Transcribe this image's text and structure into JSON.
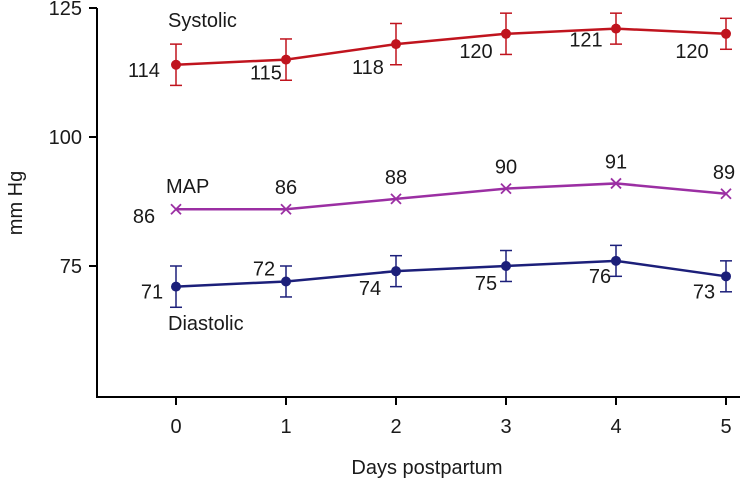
{
  "chart_data": {
    "type": "line",
    "title": "",
    "xlabel": "Days postpartum",
    "ylabel": "mm Hg",
    "x": [
      0,
      1,
      2,
      3,
      4,
      5
    ],
    "xticks": [
      "0",
      "1",
      "2",
      "3",
      "4",
      "5"
    ],
    "yticks": [
      "75",
      "100",
      "125"
    ],
    "xlim": [
      -0.7,
      5.05
    ],
    "ylim": [
      50,
      125
    ],
    "grid": false,
    "legend": "none",
    "series": [
      {
        "name": "Systolic",
        "color": "#c0141e",
        "marker": "circle",
        "values": [
          114,
          115,
          118,
          120,
          121,
          120
        ],
        "error": [
          4,
          4,
          4,
          4,
          3,
          3
        ],
        "labels": [
          "114",
          "115",
          "118",
          "120",
          "121",
          "120"
        ]
      },
      {
        "name": "MAP",
        "color": "#9b2fa3",
        "marker": "x",
        "values": [
          86,
          86,
          88,
          90,
          91,
          89
        ],
        "labels": [
          "86",
          "86",
          "88",
          "90",
          "91",
          "89"
        ]
      },
      {
        "name": "Diastolic",
        "color": "#1c1f7a",
        "marker": "circle",
        "values": [
          71,
          72,
          74,
          75,
          76,
          73
        ],
        "error": [
          4,
          3,
          3,
          3,
          3,
          3
        ],
        "labels": [
          "71",
          "72",
          "74",
          "75",
          "76",
          "73"
        ]
      }
    ]
  }
}
